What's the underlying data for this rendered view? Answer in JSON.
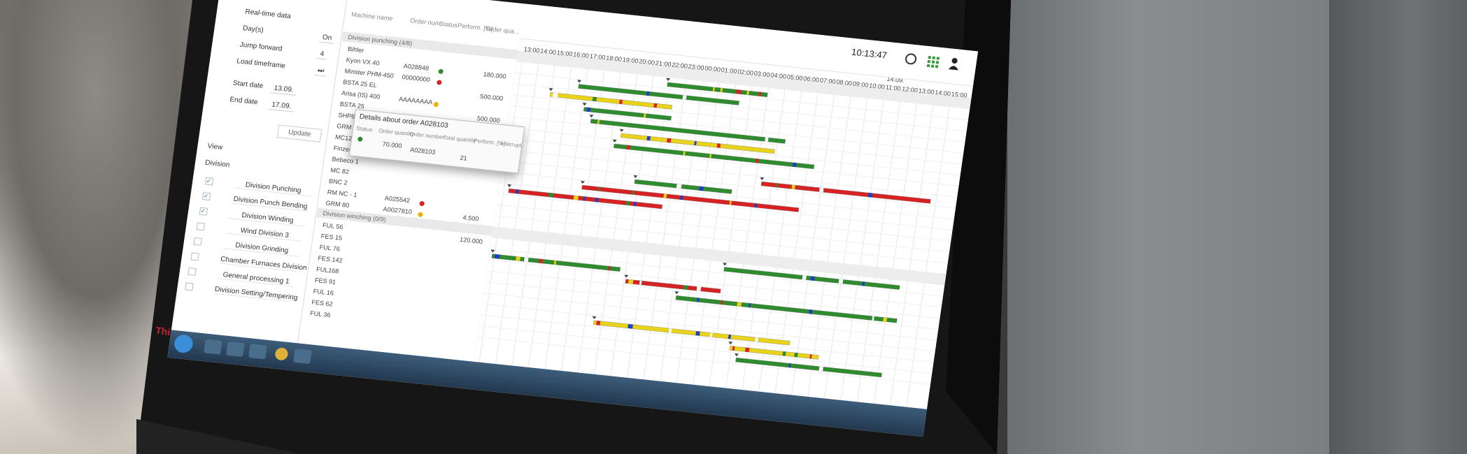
{
  "browser": {
    "clock": "10:13:47",
    "avatar": "M"
  },
  "sidebar": {
    "heading": "Real-time data",
    "fields": [
      {
        "label": "Day(s)",
        "value": "On"
      },
      {
        "label": "Jump forward",
        "value": "4"
      },
      {
        "label": "Load timeframe",
        "value": "⏭"
      },
      {
        "label": "Start date",
        "value": "13.09."
      },
      {
        "label": "End date",
        "value": "17.09."
      }
    ],
    "button": "Update",
    "view": "View",
    "division": "Division",
    "divisions": [
      {
        "name": "Division Punching",
        "checked": true
      },
      {
        "name": "Division Punch Bending",
        "checked": true
      },
      {
        "name": "Division Winding",
        "checked": true
      },
      {
        "name": "Wind Division 3",
        "checked": false
      },
      {
        "name": "Division Grinding",
        "checked": false
      },
      {
        "name": "Chamber Furnaces Division",
        "checked": false
      },
      {
        "name": "General processing 1",
        "checked": false
      },
      {
        "name": "Division Setting/Tempering",
        "checked": false
      }
    ]
  },
  "table": {
    "columns": [
      "Machine name",
      "Order num.",
      "Status",
      "Perform. [%]",
      "Order qua..."
    ],
    "groups": [
      {
        "title": "Division punching (4/8)",
        "rows": [
          {
            "machine": "Bihler",
            "order": null,
            "status": null,
            "quantity": null
          },
          {
            "machine": "Kyon VX 40",
            "order": "A028848",
            "status": "green",
            "quantity": "180.000"
          },
          {
            "machine": "Minster PHM-450",
            "order": "00000000",
            "status": "red",
            "quantity": null
          },
          {
            "machine": "BSTA 25 EL",
            "order": null,
            "status": null,
            "quantity": "500.000"
          },
          {
            "machine": "Arisa (IS) 400",
            "order": "AAAAAAAA",
            "status": "yellow",
            "quantity": null
          },
          {
            "machine": "BSTA 25",
            "order": null,
            "status": null,
            "quantity": "500.000"
          },
          {
            "machine": "SHP600",
            "order": "A028103",
            "status": "green",
            "quantity": "70.000"
          },
          {
            "machine": "GRM 50 1",
            "order": null,
            "status": null,
            "quantity": null
          },
          {
            "machine": "MC120",
            "order": null,
            "status": null,
            "quantity": null
          },
          {
            "machine": "Finzer 2",
            "order": null,
            "status": null,
            "quantity": null
          },
          {
            "machine": "Bebeco 1",
            "order": null,
            "status": null,
            "quantity": null
          },
          {
            "machine": "MC 82",
            "order": null,
            "status": null,
            "quantity": null
          },
          {
            "machine": "BNC 2",
            "order": null,
            "status": null,
            "quantity": null
          },
          {
            "machine": "RM NC - 1",
            "order": "A025542",
            "status": "red",
            "quantity": null
          },
          {
            "machine": "GRM 80",
            "order": "A0027810",
            "status": "yellow",
            "quantity": "4.500"
          }
        ]
      },
      {
        "title": "Division winching (0/9)",
        "rows": [
          {
            "machine": "FUL 56",
            "order": null,
            "status": null,
            "quantity": "120.000"
          },
          {
            "machine": "FES 15",
            "order": null,
            "status": null,
            "quantity": null
          },
          {
            "machine": "FUL 76",
            "order": null,
            "status": null,
            "quantity": null
          },
          {
            "machine": "FES 142",
            "order": null,
            "status": null,
            "quantity": null
          },
          {
            "machine": "FUL168",
            "order": null,
            "status": null,
            "quantity": null
          },
          {
            "machine": "FES 91",
            "order": null,
            "status": null,
            "quantity": null
          },
          {
            "machine": "FUL 16",
            "order": null,
            "status": null,
            "quantity": null
          },
          {
            "machine": "FES 62",
            "order": null,
            "status": null,
            "quantity": null
          },
          {
            "machine": "FUL 36",
            "order": null,
            "status": null,
            "quantity": null
          }
        ]
      }
    ]
  },
  "popup": {
    "title": "Details about order A028103",
    "columns": [
      "Status",
      "Order quantity",
      "Order number",
      "Total quantity",
      "Perform. [%]",
      "Interrupt."
    ],
    "row": {
      "status": "green",
      "quantity": "70.000",
      "order": "A028103",
      "total": "21"
    }
  },
  "timeline": {
    "date": "14.09.",
    "hours": [
      "13:00",
      "14:00",
      "15:00",
      "16:00",
      "17:00",
      "18:00",
      "19:00",
      "20:00",
      "21:00",
      "22:00",
      "23:00",
      "00:00",
      "01:00",
      "02:00",
      "03:00",
      "04:00",
      "05:00",
      "06:00",
      "07:00",
      "08:00",
      "09:00",
      "10:00",
      "11:00",
      "12:00",
      "13:00",
      "14:00",
      "15:00"
    ]
  },
  "monitor": {
    "brand": "ThinkVision"
  }
}
